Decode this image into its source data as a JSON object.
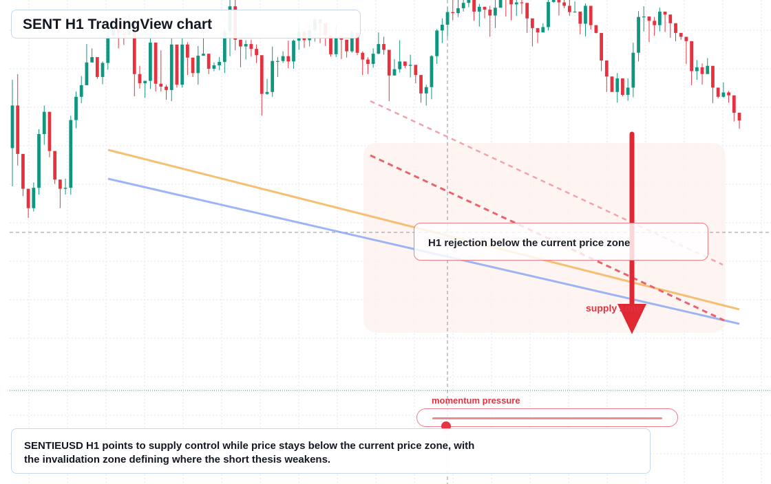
{
  "header": {
    "title": "SENT H1 TradingView chart"
  },
  "annotations": {
    "rejection": "H1 rejection below the current price zone",
    "supply": "supply zone",
    "momentum": "momentum pressure"
  },
  "momentum": {
    "level": 0.06
  },
  "summary": {
    "line1": "SENTIEUSD H1 points to supply control while price stays below the current price zone, with",
    "line2": "the invalidation zone defining where the short thesis weakens."
  },
  "colors": {
    "bull": "#12957f",
    "bear": "#e5323f",
    "accent": "#e0323f",
    "orange_trend": "#f5b55a",
    "blue_trend": "#8da9f5",
    "resistance": "#e8636c"
  },
  "chart_data": {
    "type": "candlestick",
    "timeframe": "H1",
    "ylim": [
      0,
      100
    ],
    "grid": true,
    "current_price_line": 66,
    "crosshair_price": 41.4,
    "candles": [
      [
        69.4,
        78.2,
        83.5,
        61.5
      ],
      [
        78.2,
        68.2,
        84.7,
        65.8
      ],
      [
        68.2,
        61.0,
        63.3,
        59.5
      ],
      [
        61.0,
        57.0,
        58.6,
        55.0
      ],
      [
        57.0,
        61.2,
        62.3,
        56.3
      ],
      [
        61.2,
        72.3,
        73.3,
        59.8
      ],
      [
        72.3,
        76.9,
        78.2,
        70.1
      ],
      [
        76.9,
        68.8,
        70.3,
        67.5
      ],
      [
        68.8,
        62.9,
        64.3,
        62.0
      ],
      [
        62.9,
        61.0,
        61.7,
        57.0
      ],
      [
        61.0,
        61.2,
        63.1,
        59.8
      ],
      [
        61.2,
        75.2,
        76.1,
        59.8
      ],
      [
        75.2,
        80.0,
        81.1,
        73.5
      ],
      [
        80.0,
        82.4,
        84.3,
        78.7
      ],
      [
        82.4,
        87.1,
        90.9,
        83.2
      ],
      [
        87.1,
        88.2,
        90.0,
        88.1
      ],
      [
        88.2,
        84.1,
        85.1,
        83.7
      ],
      [
        84.1,
        87.0,
        87.3,
        82.6
      ],
      [
        87.0,
        92.6,
        94.4,
        85.6
      ],
      [
        92.6,
        94.2,
        96.1,
        92.2
      ],
      [
        94.2,
        93.1,
        94.6,
        90.0
      ],
      [
        93.1,
        92.8,
        94.8,
        90.7
      ],
      [
        92.8,
        94.9,
        96.9,
        92.5
      ],
      [
        94.9,
        84.7,
        85.5,
        80.1
      ],
      [
        84.7,
        82.8,
        86.4,
        81.7
      ],
      [
        82.8,
        83.3,
        83.3,
        79.8
      ],
      [
        83.3,
        91.2,
        93.7,
        81.6
      ],
      [
        91.2,
        82.7,
        87.8,
        81.1
      ],
      [
        82.7,
        82.1,
        89.6,
        81.1
      ],
      [
        82.1,
        81.4,
        82.5,
        79.4
      ],
      [
        81.4,
        90.8,
        92.2,
        79.1
      ],
      [
        90.8,
        82.5,
        84.7,
        81.9
      ],
      [
        82.5,
        90.8,
        92.2,
        81.9
      ],
      [
        90.8,
        88.1,
        91.3,
        84.5
      ],
      [
        88.1,
        84.9,
        86.6,
        84.1
      ],
      [
        84.9,
        88.5,
        90.5,
        82.5
      ],
      [
        88.5,
        88.9,
        93.7,
        88.7
      ],
      [
        88.9,
        85.8,
        86.3,
        84.7
      ],
      [
        85.8,
        86.5,
        87.1,
        85.3
      ],
      [
        86.5,
        87.2,
        88.2,
        85.5
      ],
      [
        87.2,
        93.5,
        94.1,
        84.9
      ],
      [
        93.5,
        98.7,
        101.4,
        88.4
      ],
      [
        98.7,
        91.8,
        100.9,
        89.6
      ],
      [
        91.8,
        90.4,
        91.7,
        86.1
      ],
      [
        90.4,
        90.9,
        91.7,
        87.7
      ],
      [
        90.9,
        89.9,
        91.8,
        88.3
      ],
      [
        89.9,
        88.6,
        90.8,
        87.0
      ],
      [
        88.6,
        80.6,
        81.9,
        76.1
      ],
      [
        80.6,
        81.0,
        83.7,
        80.4
      ],
      [
        81.0,
        87.4,
        90.4,
        80.0
      ],
      [
        87.4,
        87.4,
        88.2,
        84.1
      ],
      [
        87.4,
        88.4,
        89.4,
        87.0
      ],
      [
        88.4,
        87.3,
        91.6,
        85.9
      ],
      [
        87.3,
        91.6,
        91.8,
        85.8
      ],
      [
        91.6,
        93.4,
        95.7,
        89.7
      ],
      [
        93.4,
        91.7,
        93.9,
        90.1
      ],
      [
        91.7,
        93.8,
        94.7,
        90.4
      ],
      [
        93.8,
        96.0,
        96.5,
        91.4
      ],
      [
        96.0,
        95.2,
        95.8,
        91.1
      ],
      [
        95.2,
        92.7,
        94.2,
        90.5
      ],
      [
        92.7,
        88.8,
        90.6,
        88.3
      ],
      [
        88.8,
        92.4,
        94.7,
        88.2
      ],
      [
        92.4,
        91.8,
        92.5,
        87.8
      ],
      [
        91.8,
        89.4,
        89.8,
        88.1
      ],
      [
        89.4,
        93.3,
        93.7,
        89.1
      ],
      [
        93.3,
        89.1,
        92.8,
        88.6
      ],
      [
        89.1,
        87.7,
        89.4,
        84.5
      ],
      [
        87.7,
        86.8,
        88.2,
        84.7
      ],
      [
        86.8,
        88.9,
        90.0,
        86.0
      ],
      [
        88.9,
        90.9,
        93.3,
        88.8
      ],
      [
        90.9,
        89.7,
        92.4,
        88.7
      ],
      [
        89.7,
        84.4,
        84.6,
        79.1
      ],
      [
        84.4,
        85.7,
        87.8,
        85.6
      ],
      [
        85.7,
        87.3,
        91.7,
        85.0
      ],
      [
        87.3,
        86.4,
        87.2,
        85.9
      ],
      [
        86.4,
        86.6,
        88.7,
        84.0
      ],
      [
        86.6,
        84.5,
        85.7,
        82.8
      ],
      [
        84.5,
        80.7,
        80.9,
        78.8
      ],
      [
        80.7,
        82.0,
        82.5,
        78.2
      ],
      [
        82.0,
        88.4,
        88.6,
        79.5
      ],
      [
        88.4,
        93.7,
        94.0,
        86.8
      ],
      [
        93.7,
        94.9,
        96.2,
        91.1
      ],
      [
        94.9,
        97.5,
        98.5,
        92.4
      ],
      [
        97.5,
        97.3,
        102.4,
        95.8
      ],
      [
        97.3,
        98.3,
        101.4,
        96.5
      ],
      [
        98.3,
        99.4,
        101.0,
        97.6
      ],
      [
        99.4,
        100.6,
        101.3,
        98.5
      ],
      [
        100.6,
        97.6,
        98.5,
        95.7
      ],
      [
        97.6,
        98.6,
        99.2,
        94.5
      ],
      [
        98.6,
        98.0,
        98.5,
        96.2
      ],
      [
        98.0,
        96.8,
        98.8,
        92.4
      ],
      [
        96.8,
        98.4,
        100.0,
        94.2
      ],
      [
        98.4,
        104.6,
        106.2,
        98.5
      ],
      [
        104.6,
        100.6,
        103.4,
        96.6
      ],
      [
        100.6,
        99.1,
        99.9,
        95.8
      ],
      [
        99.1,
        99.5,
        101.0,
        96.7
      ],
      [
        99.5,
        99.4,
        100.1,
        97.1
      ],
      [
        99.4,
        96.2,
        98.2,
        93.2
      ],
      [
        96.2,
        94.2,
        94.4,
        90.4
      ],
      [
        94.2,
        93.3,
        93.5,
        91.1
      ],
      [
        93.3,
        94.4,
        95.2,
        93.4
      ],
      [
        94.4,
        99.6,
        102.6,
        93.7
      ],
      [
        99.6,
        100.8,
        101.2,
        99.4
      ],
      [
        100.8,
        99.5,
        102.7,
        96.8
      ],
      [
        99.5,
        98.8,
        101.3,
        98.3
      ],
      [
        98.8,
        97.5,
        101.5,
        96.7
      ],
      [
        97.5,
        97.6,
        99.7,
        97.4
      ],
      [
        97.6,
        95.1,
        96.3,
        92.9
      ],
      [
        95.1,
        98.8,
        99.3,
        92.5
      ],
      [
        98.8,
        94.8,
        97.8,
        93.9
      ],
      [
        94.8,
        93.2,
        94.1,
        93.1
      ],
      [
        93.2,
        87.5,
        89.5,
        85.3
      ],
      [
        87.5,
        84.2,
        85.4,
        81.0
      ],
      [
        84.2,
        81.0,
        82.6,
        81.1
      ],
      [
        81.0,
        83.8,
        84.9,
        78.8
      ],
      [
        83.8,
        80.4,
        81.6,
        80.1
      ],
      [
        80.4,
        81.9,
        83.8,
        79.2
      ],
      [
        81.9,
        89.1,
        91.2,
        79.9
      ],
      [
        89.1,
        96.5,
        97.7,
        87.3
      ],
      [
        96.5,
        96.6,
        98.7,
        93.5
      ],
      [
        96.6,
        95.7,
        96.4,
        91.3
      ],
      [
        95.7,
        94.8,
        96.5,
        92.6
      ],
      [
        94.8,
        97.6,
        98.4,
        93.5
      ],
      [
        97.6,
        97.0,
        97.5,
        93.4
      ],
      [
        97.0,
        95.2,
        95.5,
        92.2
      ],
      [
        95.2,
        93.2,
        95.2,
        91.5
      ],
      [
        93.2,
        92.4,
        92.9,
        91.8
      ],
      [
        92.4,
        91.5,
        91.5,
        86.8
      ],
      [
        91.5,
        85.3,
        85.8,
        82.4
      ],
      [
        85.3,
        86.1,
        87.6,
        83.5
      ],
      [
        86.1,
        84.7,
        86.9,
        82.5
      ],
      [
        84.7,
        86.4,
        88.0,
        84.8
      ],
      [
        86.4,
        81.9,
        82.3,
        78.7
      ],
      [
        81.9,
        80.0,
        80.2,
        79.7
      ],
      [
        80.0,
        80.9,
        83.0,
        79.8
      ],
      [
        80.9,
        80.3,
        81.2,
        78.8
      ],
      [
        80.3,
        76.7,
        76.7,
        74.9
      ],
      [
        76.7,
        75.1,
        76.3,
        73.4
      ]
    ]
  }
}
